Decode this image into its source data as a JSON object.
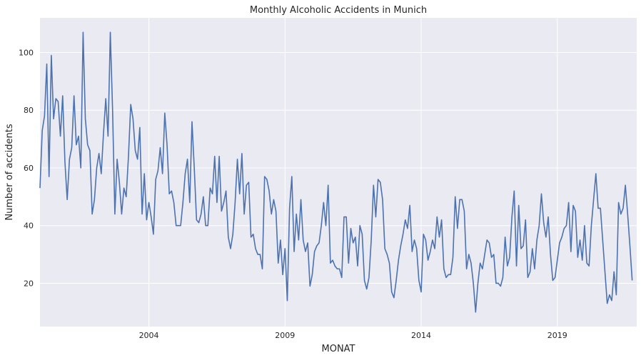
{
  "chart_data": {
    "type": "line",
    "title": "Monthly Alcoholic Accidents in Munich",
    "xlabel": "MONAT",
    "ylabel": "Number of accidents",
    "xlim": [
      "2000-01",
      "2021-12"
    ],
    "ylim": [
      5,
      112
    ],
    "x_ticks": [
      "2004",
      "2009",
      "2014",
      "2019"
    ],
    "y_ticks": [
      20,
      40,
      60,
      80,
      100
    ],
    "grid": true,
    "colors": {
      "line": "#4c72b0",
      "plot_background": "#eaeaf2",
      "grid": "#ffffff"
    },
    "series": [
      {
        "x_start": "2000-01",
        "frequency": "monthly",
        "values": [
          53,
          73,
          78,
          96,
          57,
          99,
          77,
          84,
          83,
          71,
          85,
          62,
          49,
          63,
          67,
          85,
          68,
          71,
          60,
          107,
          77,
          68,
          66,
          44,
          49,
          60,
          65,
          58,
          72,
          84,
          71,
          107,
          80,
          44,
          63,
          55,
          44,
          53,
          50,
          64,
          82,
          77,
          66,
          63,
          74,
          44,
          58,
          42,
          48,
          43,
          37,
          56,
          59,
          67,
          58,
          79,
          68,
          51,
          52,
          48,
          40,
          40,
          40,
          48,
          58,
          63,
          48,
          76,
          60,
          42,
          41,
          44,
          50,
          40,
          40,
          53,
          51,
          64,
          48,
          64,
          45,
          48,
          52,
          36,
          32,
          37,
          48,
          63,
          51,
          65,
          44,
          54,
          55,
          36,
          37,
          32,
          30,
          30,
          25,
          57,
          56,
          52,
          44,
          49,
          45,
          27,
          35,
          23,
          32,
          14,
          46,
          57,
          31,
          44,
          35,
          49,
          35,
          31,
          34,
          19,
          23,
          31,
          33,
          34,
          40,
          48,
          40,
          54,
          27,
          28,
          26,
          25,
          25,
          22,
          43,
          43,
          27,
          39,
          34,
          36,
          26,
          40,
          37,
          21,
          18,
          22,
          35,
          54,
          43,
          56,
          55,
          49,
          32,
          30,
          27,
          17,
          15,
          21,
          28,
          33,
          37,
          42,
          39,
          47,
          31,
          35,
          32,
          21,
          17,
          37,
          35,
          28,
          31,
          35,
          32,
          43,
          36,
          42,
          25,
          22,
          23,
          23,
          29,
          50,
          39,
          49,
          49,
          45,
          25,
          30,
          27,
          20,
          10,
          20,
          27,
          25,
          30,
          35,
          34,
          29,
          30,
          20,
          20,
          19,
          22,
          36,
          26,
          29,
          43,
          52,
          26,
          47,
          32,
          33,
          42,
          22,
          24,
          32,
          25,
          35,
          40,
          51,
          41,
          36,
          43,
          30,
          21,
          22,
          28,
          34,
          36,
          39,
          40,
          48,
          31,
          47,
          45,
          29,
          35,
          28,
          40,
          27,
          26,
          40,
          49,
          58,
          46,
          46,
          35,
          24,
          13,
          16,
          14,
          24,
          16,
          48,
          44,
          46,
          54,
          44,
          33,
          21
        ]
      }
    ]
  }
}
